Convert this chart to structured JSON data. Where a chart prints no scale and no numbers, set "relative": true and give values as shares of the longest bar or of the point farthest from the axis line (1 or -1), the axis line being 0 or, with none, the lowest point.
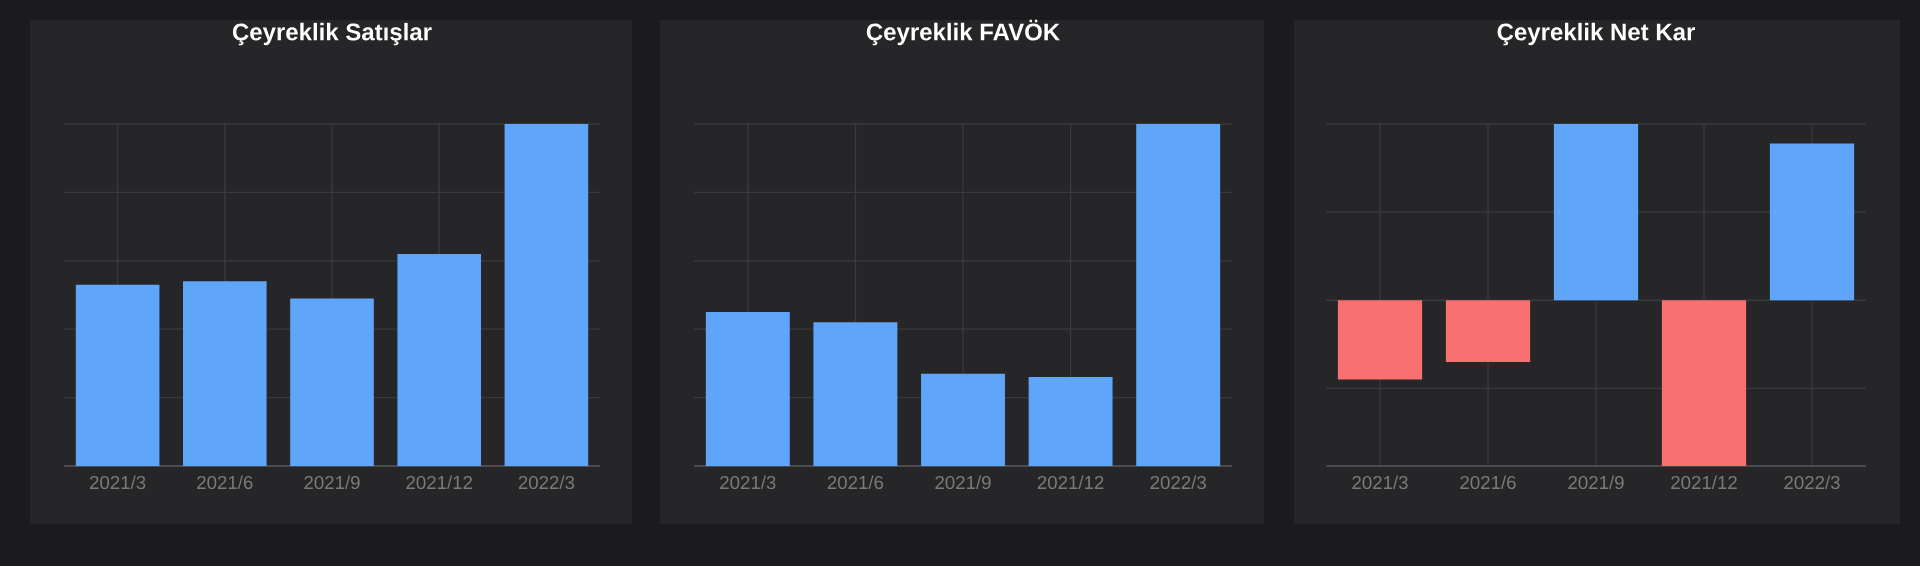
{
  "chart_data": [
    {
      "type": "bar",
      "title": "Çeyreklik Satışlar",
      "categories": [
        "2021/3",
        "2021/6",
        "2021/9",
        "2021/12",
        "2022/3"
      ],
      "values": [
        0.53,
        0.54,
        0.49,
        0.62,
        1
      ],
      "color": "#5fa5f9",
      "relative": true,
      "grid": true
    },
    {
      "type": "bar",
      "title": "Çeyreklik FAVÖK",
      "categories": [
        "2021/3",
        "2021/6",
        "2021/9",
        "2021/12",
        "2022/3"
      ],
      "values": [
        0.45,
        0.42,
        0.27,
        0.26,
        1
      ],
      "color": "#5fa5f9",
      "relative": true,
      "grid": true
    },
    {
      "type": "bar",
      "title": "Çeyreklik Net Kar",
      "categories": [
        "2021/3",
        "2021/6",
        "2021/9",
        "2021/12",
        "2022/3"
      ],
      "values": [
        -0.45,
        -0.35,
        1,
        -0.94,
        0.89
      ],
      "colors": [
        "#f97070",
        "#f97070",
        "#5fa5f9",
        "#f97070",
        "#5fa5f9"
      ],
      "relative": true,
      "grid": true
    }
  ]
}
